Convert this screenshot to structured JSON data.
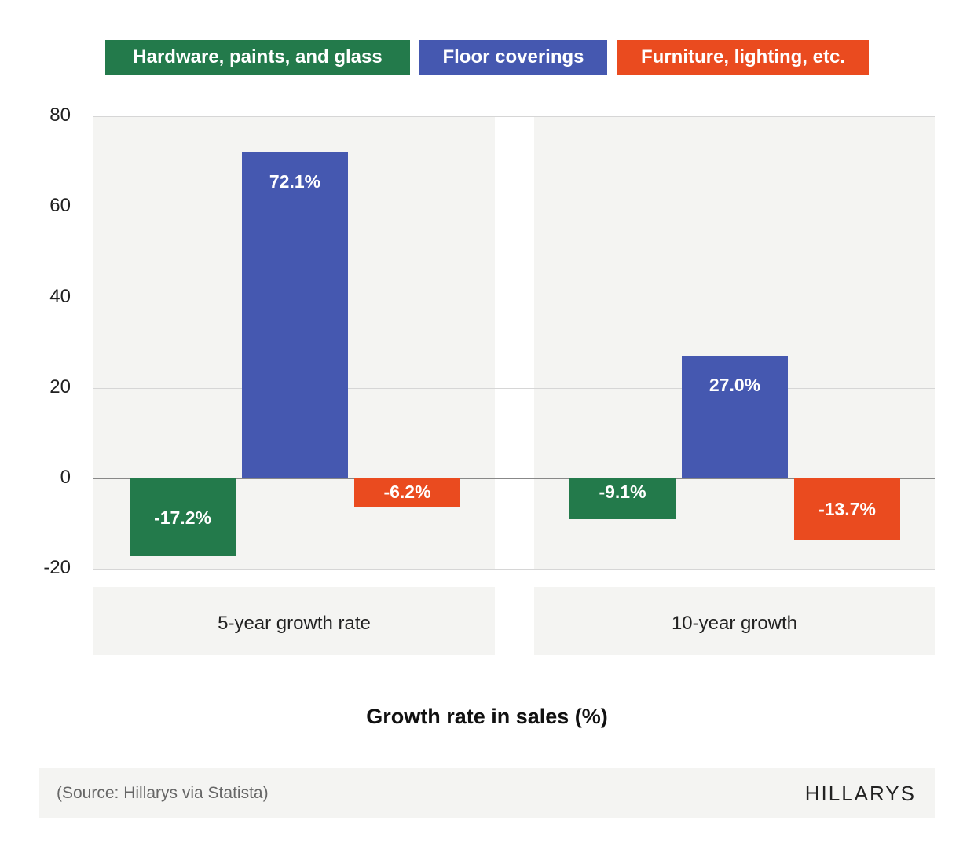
{
  "chart_data": {
    "type": "bar",
    "categories": [
      "5-year growth rate",
      "10-year growth"
    ],
    "series": [
      {
        "name": "Hardware, paints, and glass",
        "color": "#237a4b",
        "values": [
          -17.2,
          -9.1
        ],
        "labels": [
          "-17.2%",
          "-9.1%"
        ]
      },
      {
        "name": "Floor coverings",
        "color": "#4558b0",
        "values": [
          72.1,
          27.0
        ],
        "labels": [
          "72.1%",
          "27.0%"
        ]
      },
      {
        "name": "Furniture, lighting, etc.",
        "color": "#ea4b1f",
        "values": [
          -6.2,
          -13.7
        ],
        "labels": [
          "-6.2%",
          "-13.7%"
        ]
      }
    ],
    "ylim": [
      -20,
      80
    ],
    "yticks": [
      "80",
      "60",
      "40",
      "20",
      "0",
      "-20"
    ],
    "xlabel": "Growth rate in sales (%)",
    "legend": "top",
    "grid": true
  },
  "footer": {
    "source": "(Source: Hillarys via Statista)",
    "logo": "HILLARYS"
  }
}
